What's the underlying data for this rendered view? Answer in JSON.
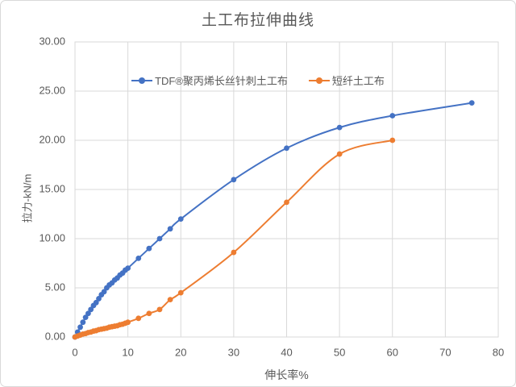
{
  "page": {
    "background": "#ffffff",
    "border_color": "#d9d9d9"
  },
  "chart_data": {
    "type": "line",
    "title": "土工布拉伸曲线",
    "xlabel": "伸长率%",
    "ylabel": "拉力-kN/m",
    "xlim": [
      0,
      80
    ],
    "ylim": [
      0,
      30
    ],
    "grid": true,
    "legend_position": "top-center-inside",
    "gridline_color": "#d9d9d9",
    "text_color": "#595959",
    "x_tick_values": [
      0,
      10,
      20,
      30,
      40,
      50,
      60,
      70,
      80
    ],
    "x_tick_labels": [
      "0",
      "10",
      "20",
      "30",
      "40",
      "50",
      "60",
      "70",
      "80"
    ],
    "y_tick_values": [
      0,
      5,
      10,
      15,
      20,
      25,
      30
    ],
    "y_tick_labels": [
      "0.00",
      "5.00",
      "10.00",
      "15.00",
      "20.00",
      "25.00",
      "30.00"
    ],
    "series": [
      {
        "name": "TDF®聚丙烯长丝针刺土工布",
        "color": "#4472c4",
        "marker": "circle",
        "smooth": true,
        "points": [
          [
            0,
            0
          ],
          [
            0.5,
            0.5
          ],
          [
            1,
            1.0
          ],
          [
            1.5,
            1.5
          ],
          [
            2,
            2.0
          ],
          [
            2.5,
            2.4
          ],
          [
            3,
            2.8
          ],
          [
            3.5,
            3.2
          ],
          [
            4,
            3.5
          ],
          [
            4.5,
            3.9
          ],
          [
            5,
            4.3
          ],
          [
            5.5,
            4.6
          ],
          [
            6,
            5.0
          ],
          [
            6.5,
            5.3
          ],
          [
            7,
            5.5
          ],
          [
            7.5,
            5.8
          ],
          [
            8,
            6.0
          ],
          [
            8.5,
            6.3
          ],
          [
            9,
            6.5
          ],
          [
            9.5,
            6.8
          ],
          [
            10,
            7.0
          ],
          [
            12,
            8.0
          ],
          [
            14,
            9.0
          ],
          [
            16,
            10.0
          ],
          [
            18,
            11.0
          ],
          [
            20,
            12.0
          ],
          [
            30,
            16.0
          ],
          [
            40,
            19.2
          ],
          [
            50,
            21.3
          ],
          [
            60,
            22.5
          ],
          [
            75,
            23.8
          ]
        ]
      },
      {
        "name": "短纤土工布",
        "color": "#ed7d31",
        "marker": "circle",
        "smooth": true,
        "points": [
          [
            0,
            0
          ],
          [
            0.5,
            0.1
          ],
          [
            1,
            0.2
          ],
          [
            1.5,
            0.3
          ],
          [
            2,
            0.35
          ],
          [
            2.5,
            0.45
          ],
          [
            3,
            0.5
          ],
          [
            3.5,
            0.6
          ],
          [
            4,
            0.65
          ],
          [
            4.5,
            0.75
          ],
          [
            5,
            0.8
          ],
          [
            5.5,
            0.85
          ],
          [
            6,
            0.9
          ],
          [
            6.5,
            1.0
          ],
          [
            7,
            1.05
          ],
          [
            7.5,
            1.1
          ],
          [
            8,
            1.15
          ],
          [
            8.5,
            1.25
          ],
          [
            9,
            1.3
          ],
          [
            9.5,
            1.4
          ],
          [
            10,
            1.5
          ],
          [
            12,
            1.9
          ],
          [
            14,
            2.4
          ],
          [
            16,
            2.8
          ],
          [
            18,
            3.8
          ],
          [
            20,
            4.5
          ],
          [
            30,
            8.6
          ],
          [
            40,
            13.7
          ],
          [
            50,
            18.6
          ],
          [
            60,
            20.0
          ]
        ]
      }
    ]
  }
}
